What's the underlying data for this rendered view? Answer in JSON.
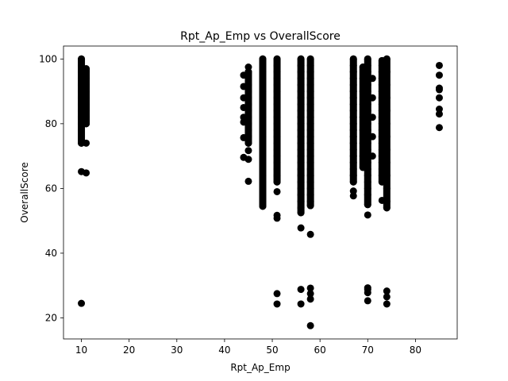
{
  "chart_data": {
    "type": "scatter",
    "title": "Rpt_Ap_Emp vs OverallScore",
    "xlabel": "Rpt_Ap_Emp",
    "ylabel": "OverallScore",
    "xlim": [
      6.25,
      88.75
    ],
    "ylim": [
      13.5,
      104
    ],
    "xticks": [
      10,
      20,
      30,
      40,
      50,
      60,
      70,
      80
    ],
    "yticks": [
      20,
      40,
      60,
      80,
      100
    ],
    "grid": false,
    "legend": false,
    "marker_color": "#000000",
    "series": [
      {
        "points": [
          {
            "x": 10,
            "y": 24.5
          },
          {
            "x": 10,
            "y": 65.2
          },
          {
            "x": 10,
            "y": 74
          },
          {
            "x": 10,
            "y": 78
          },
          {
            "x": 10,
            "y": 80
          },
          {
            "x": 10,
            "y": 82
          },
          {
            "x": 10,
            "y": 84
          },
          {
            "x": 10,
            "y": 86
          },
          {
            "x": 10,
            "y": 88
          },
          {
            "x": 10,
            "y": 90
          },
          {
            "x": 10,
            "y": 92
          },
          {
            "x": 10,
            "y": 94
          },
          {
            "x": 10,
            "y": 96
          },
          {
            "x": 10,
            "y": 98
          },
          {
            "x": 10,
            "y": 100
          },
          {
            "x": 11,
            "y": 64.8
          },
          {
            "x": 11,
            "y": 74
          },
          {
            "x": 11,
            "y": 80
          },
          {
            "x": 11,
            "y": 82
          },
          {
            "x": 11,
            "y": 84
          },
          {
            "x": 11,
            "y": 86
          },
          {
            "x": 11,
            "y": 88
          },
          {
            "x": 11,
            "y": 90
          },
          {
            "x": 11,
            "y": 92
          },
          {
            "x": 11,
            "y": 94
          },
          {
            "x": 11,
            "y": 96
          },
          {
            "x": 44,
            "y": 69.6
          },
          {
            "x": 44,
            "y": 75.7
          },
          {
            "x": 44,
            "y": 80.5
          },
          {
            "x": 44,
            "y": 82
          },
          {
            "x": 44,
            "y": 85
          },
          {
            "x": 44,
            "y": 88
          },
          {
            "x": 44,
            "y": 91.5
          },
          {
            "x": 44,
            "y": 95
          },
          {
            "x": 45,
            "y": 62.2
          },
          {
            "x": 45,
            "y": 69
          },
          {
            "x": 45,
            "y": 71.7
          },
          {
            "x": 45,
            "y": 74
          },
          {
            "x": 45,
            "y": 76
          },
          {
            "x": 45,
            "y": 78
          },
          {
            "x": 45,
            "y": 80
          },
          {
            "x": 45,
            "y": 82
          },
          {
            "x": 45,
            "y": 84
          },
          {
            "x": 45,
            "y": 86
          },
          {
            "x": 45,
            "y": 88
          },
          {
            "x": 45,
            "y": 90
          },
          {
            "x": 45,
            "y": 92
          },
          {
            "x": 45,
            "y": 96
          },
          {
            "x": 45,
            "y": 97.5
          },
          {
            "x": 48,
            "y": 54.5
          },
          {
            "x": 48,
            "y": 56
          },
          {
            "x": 48,
            "y": 58
          },
          {
            "x": 48,
            "y": 60
          },
          {
            "x": 48,
            "y": 62
          },
          {
            "x": 48,
            "y": 64
          },
          {
            "x": 48,
            "y": 66
          },
          {
            "x": 48,
            "y": 68
          },
          {
            "x": 48,
            "y": 70
          },
          {
            "x": 48,
            "y": 72
          },
          {
            "x": 48,
            "y": 74
          },
          {
            "x": 48,
            "y": 76
          },
          {
            "x": 48,
            "y": 78
          },
          {
            "x": 48,
            "y": 80
          },
          {
            "x": 48,
            "y": 82
          },
          {
            "x": 48,
            "y": 84
          },
          {
            "x": 48,
            "y": 86
          },
          {
            "x": 48,
            "y": 88
          },
          {
            "x": 48,
            "y": 90
          },
          {
            "x": 48,
            "y": 92
          },
          {
            "x": 48,
            "y": 94
          },
          {
            "x": 48,
            "y": 96
          },
          {
            "x": 48,
            "y": 98
          },
          {
            "x": 48,
            "y": 100
          },
          {
            "x": 51,
            "y": 24.3
          },
          {
            "x": 51,
            "y": 27.5
          },
          {
            "x": 51,
            "y": 50.8
          },
          {
            "x": 51,
            "y": 51.7
          },
          {
            "x": 51,
            "y": 59
          },
          {
            "x": 51,
            "y": 62
          },
          {
            "x": 51,
            "y": 64
          },
          {
            "x": 51,
            "y": 66
          },
          {
            "x": 51,
            "y": 68
          },
          {
            "x": 51,
            "y": 70
          },
          {
            "x": 51,
            "y": 72
          },
          {
            "x": 51,
            "y": 74
          },
          {
            "x": 51,
            "y": 76
          },
          {
            "x": 51,
            "y": 78
          },
          {
            "x": 51,
            "y": 80
          },
          {
            "x": 51,
            "y": 82
          },
          {
            "x": 51,
            "y": 84
          },
          {
            "x": 51,
            "y": 86
          },
          {
            "x": 51,
            "y": 88
          },
          {
            "x": 51,
            "y": 90
          },
          {
            "x": 51,
            "y": 92
          },
          {
            "x": 51,
            "y": 94
          },
          {
            "x": 51,
            "y": 96
          },
          {
            "x": 51,
            "y": 98
          },
          {
            "x": 51,
            "y": 100
          },
          {
            "x": 56,
            "y": 24.3
          },
          {
            "x": 56,
            "y": 28.8
          },
          {
            "x": 56,
            "y": 47.8
          },
          {
            "x": 56,
            "y": 52.5
          },
          {
            "x": 56,
            "y": 54
          },
          {
            "x": 56,
            "y": 56
          },
          {
            "x": 56,
            "y": 58
          },
          {
            "x": 56,
            "y": 60
          },
          {
            "x": 56,
            "y": 62
          },
          {
            "x": 56,
            "y": 64
          },
          {
            "x": 56,
            "y": 66
          },
          {
            "x": 56,
            "y": 68
          },
          {
            "x": 56,
            "y": 70
          },
          {
            "x": 56,
            "y": 72
          },
          {
            "x": 56,
            "y": 74
          },
          {
            "x": 56,
            "y": 76
          },
          {
            "x": 56,
            "y": 78
          },
          {
            "x": 56,
            "y": 80
          },
          {
            "x": 56,
            "y": 82
          },
          {
            "x": 56,
            "y": 84
          },
          {
            "x": 56,
            "y": 86
          },
          {
            "x": 56,
            "y": 88
          },
          {
            "x": 56,
            "y": 90
          },
          {
            "x": 56,
            "y": 92
          },
          {
            "x": 56,
            "y": 94
          },
          {
            "x": 56,
            "y": 96
          },
          {
            "x": 56,
            "y": 98
          },
          {
            "x": 56,
            "y": 100
          },
          {
            "x": 58,
            "y": 17.6
          },
          {
            "x": 58,
            "y": 25.8
          },
          {
            "x": 58,
            "y": 27.5
          },
          {
            "x": 58,
            "y": 29.2
          },
          {
            "x": 58,
            "y": 45.8
          },
          {
            "x": 58,
            "y": 54.7
          },
          {
            "x": 58,
            "y": 56
          },
          {
            "x": 58,
            "y": 58
          },
          {
            "x": 58,
            "y": 60
          },
          {
            "x": 58,
            "y": 62
          },
          {
            "x": 58,
            "y": 64
          },
          {
            "x": 58,
            "y": 66
          },
          {
            "x": 58,
            "y": 68
          },
          {
            "x": 58,
            "y": 70
          },
          {
            "x": 58,
            "y": 72
          },
          {
            "x": 58,
            "y": 74
          },
          {
            "x": 58,
            "y": 76
          },
          {
            "x": 58,
            "y": 78
          },
          {
            "x": 58,
            "y": 80
          },
          {
            "x": 58,
            "y": 82
          },
          {
            "x": 58,
            "y": 84
          },
          {
            "x": 58,
            "y": 86
          },
          {
            "x": 58,
            "y": 88
          },
          {
            "x": 58,
            "y": 90
          },
          {
            "x": 58,
            "y": 92
          },
          {
            "x": 58,
            "y": 94
          },
          {
            "x": 58,
            "y": 96
          },
          {
            "x": 58,
            "y": 98
          },
          {
            "x": 58,
            "y": 100
          },
          {
            "x": 67,
            "y": 57.7
          },
          {
            "x": 67,
            "y": 59.2
          },
          {
            "x": 67,
            "y": 62
          },
          {
            "x": 67,
            "y": 64
          },
          {
            "x": 67,
            "y": 66
          },
          {
            "x": 67,
            "y": 68
          },
          {
            "x": 67,
            "y": 70
          },
          {
            "x": 67,
            "y": 72
          },
          {
            "x": 67,
            "y": 74
          },
          {
            "x": 67,
            "y": 76
          },
          {
            "x": 67,
            "y": 78
          },
          {
            "x": 67,
            "y": 80
          },
          {
            "x": 67,
            "y": 82
          },
          {
            "x": 67,
            "y": 84
          },
          {
            "x": 67,
            "y": 86
          },
          {
            "x": 67,
            "y": 88
          },
          {
            "x": 67,
            "y": 90
          },
          {
            "x": 67,
            "y": 92
          },
          {
            "x": 67,
            "y": 94
          },
          {
            "x": 67,
            "y": 96
          },
          {
            "x": 67,
            "y": 98
          },
          {
            "x": 67,
            "y": 100
          },
          {
            "x": 69,
            "y": 66.5
          },
          {
            "x": 69,
            "y": 70
          },
          {
            "x": 69,
            "y": 74
          },
          {
            "x": 69,
            "y": 78
          },
          {
            "x": 69,
            "y": 82
          },
          {
            "x": 69,
            "y": 86
          },
          {
            "x": 69,
            "y": 90
          },
          {
            "x": 69,
            "y": 94
          },
          {
            "x": 69,
            "y": 97.5
          },
          {
            "x": 70,
            "y": 25.3
          },
          {
            "x": 70,
            "y": 27.8
          },
          {
            "x": 70,
            "y": 28.8
          },
          {
            "x": 70,
            "y": 29.3
          },
          {
            "x": 70,
            "y": 51.8
          },
          {
            "x": 70,
            "y": 55
          },
          {
            "x": 70,
            "y": 58
          },
          {
            "x": 70,
            "y": 60
          },
          {
            "x": 70,
            "y": 62
          },
          {
            "x": 70,
            "y": 64
          },
          {
            "x": 70,
            "y": 66
          },
          {
            "x": 70,
            "y": 68
          },
          {
            "x": 70,
            "y": 70
          },
          {
            "x": 70,
            "y": 72
          },
          {
            "x": 70,
            "y": 74
          },
          {
            "x": 70,
            "y": 76
          },
          {
            "x": 70,
            "y": 78
          },
          {
            "x": 70,
            "y": 80
          },
          {
            "x": 70,
            "y": 82
          },
          {
            "x": 70,
            "y": 84
          },
          {
            "x": 70,
            "y": 86
          },
          {
            "x": 70,
            "y": 88
          },
          {
            "x": 70,
            "y": 90
          },
          {
            "x": 70,
            "y": 92
          },
          {
            "x": 70,
            "y": 94
          },
          {
            "x": 70,
            "y": 96
          },
          {
            "x": 70,
            "y": 98
          },
          {
            "x": 70,
            "y": 100
          },
          {
            "x": 71,
            "y": 70
          },
          {
            "x": 71,
            "y": 76
          },
          {
            "x": 71,
            "y": 82
          },
          {
            "x": 71,
            "y": 88
          },
          {
            "x": 71,
            "y": 94
          },
          {
            "x": 73,
            "y": 56.3
          },
          {
            "x": 73,
            "y": 62
          },
          {
            "x": 73,
            "y": 64
          },
          {
            "x": 73,
            "y": 66
          },
          {
            "x": 73,
            "y": 68
          },
          {
            "x": 73,
            "y": 70
          },
          {
            "x": 73,
            "y": 72
          },
          {
            "x": 73,
            "y": 74
          },
          {
            "x": 73,
            "y": 76
          },
          {
            "x": 73,
            "y": 78
          },
          {
            "x": 73,
            "y": 80
          },
          {
            "x": 73,
            "y": 82
          },
          {
            "x": 73,
            "y": 84
          },
          {
            "x": 73,
            "y": 86
          },
          {
            "x": 73,
            "y": 88
          },
          {
            "x": 73,
            "y": 90
          },
          {
            "x": 73,
            "y": 92
          },
          {
            "x": 73,
            "y": 94
          },
          {
            "x": 73,
            "y": 96
          },
          {
            "x": 73,
            "y": 98
          },
          {
            "x": 73,
            "y": 99.5
          },
          {
            "x": 74,
            "y": 24.3
          },
          {
            "x": 74,
            "y": 26.5
          },
          {
            "x": 74,
            "y": 28.3
          },
          {
            "x": 74,
            "y": 54
          },
          {
            "x": 74,
            "y": 56
          },
          {
            "x": 74,
            "y": 60
          },
          {
            "x": 74,
            "y": 64
          },
          {
            "x": 74,
            "y": 68
          },
          {
            "x": 74,
            "y": 72
          },
          {
            "x": 74,
            "y": 76
          },
          {
            "x": 74,
            "y": 80
          },
          {
            "x": 74,
            "y": 84
          },
          {
            "x": 74,
            "y": 88
          },
          {
            "x": 74,
            "y": 92
          },
          {
            "x": 74,
            "y": 96
          },
          {
            "x": 74,
            "y": 100
          },
          {
            "x": 85,
            "y": 78.8
          },
          {
            "x": 85,
            "y": 83
          },
          {
            "x": 85,
            "y": 84.5
          },
          {
            "x": 85,
            "y": 88
          },
          {
            "x": 85,
            "y": 90.5
          },
          {
            "x": 85,
            "y": 91
          },
          {
            "x": 85,
            "y": 95
          },
          {
            "x": 85,
            "y": 98
          }
        ]
      }
    ],
    "dense_columns": [
      {
        "x": 10,
        "y_min": 74,
        "y_max": 100
      },
      {
        "x": 11,
        "y_min": 80,
        "y_max": 97
      },
      {
        "x": 45,
        "y_min": 74,
        "y_max": 96
      },
      {
        "x": 48,
        "y_min": 54.5,
        "y_max": 100
      },
      {
        "x": 51,
        "y_min": 62,
        "y_max": 100
      },
      {
        "x": 56,
        "y_min": 52.5,
        "y_max": 100
      },
      {
        "x": 58,
        "y_min": 54.7,
        "y_max": 100
      },
      {
        "x": 67,
        "y_min": 62,
        "y_max": 100
      },
      {
        "x": 69,
        "y_min": 66.5,
        "y_max": 97.5
      },
      {
        "x": 70,
        "y_min": 55,
        "y_max": 100
      },
      {
        "x": 73,
        "y_min": 62,
        "y_max": 99.5
      },
      {
        "x": 74,
        "y_min": 54,
        "y_max": 100
      }
    ]
  }
}
